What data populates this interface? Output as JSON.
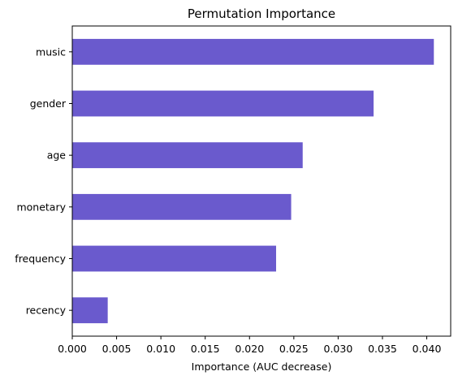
{
  "chart_data": {
    "type": "bar",
    "orientation": "horizontal",
    "title": "Permutation Importance",
    "xlabel": "Importance (AUC decrease)",
    "ylabel": "",
    "categories": [
      "music",
      "gender",
      "age",
      "monetary",
      "frequency",
      "recency"
    ],
    "values": [
      0.0408,
      0.034,
      0.026,
      0.0247,
      0.023,
      0.004
    ],
    "xlim": [
      0,
      0.0427
    ],
    "xticks": [
      "0.000",
      "0.005",
      "0.010",
      "0.015",
      "0.020",
      "0.025",
      "0.030",
      "0.035",
      "0.040"
    ],
    "bar_color": "#6a5acd",
    "grid": false,
    "legend": "none"
  }
}
